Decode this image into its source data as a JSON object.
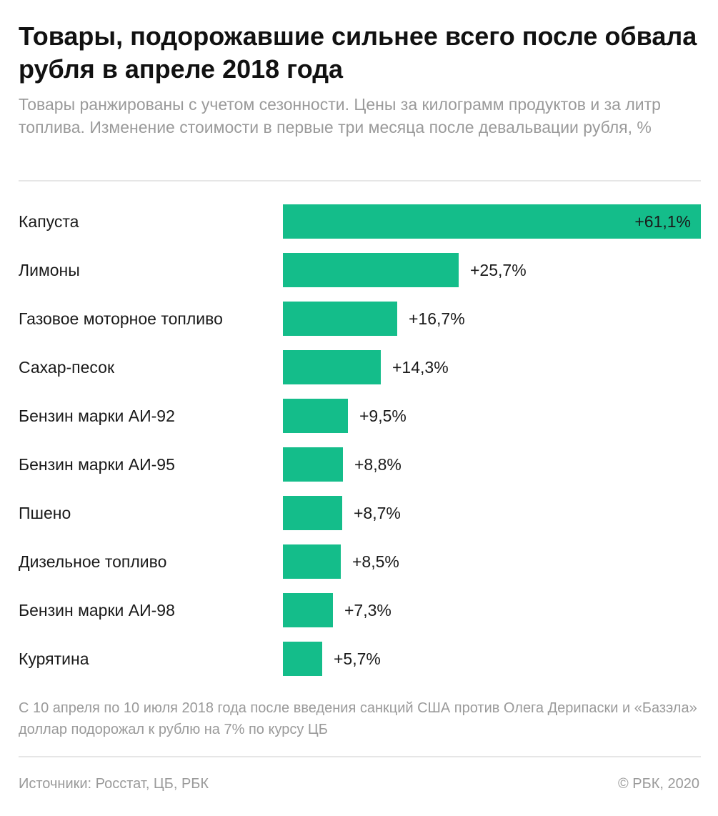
{
  "header": {
    "title": "Товары, подорожавшие сильнее всего после обвала рубля в апреле 2018 года",
    "subtitle": "Товары ранжированы с учетом сезонности. Цены за килограмм продуктов и за литр топлива. Изменение стоимости в первые три месяца после девальвации рубля, %"
  },
  "chart_data": {
    "type": "bar",
    "orientation": "horizontal",
    "title": "Товары, подорожавшие сильнее всего после обвала рубля в апреле 2018 года",
    "xlabel": "",
    "ylabel": "",
    "xlim": [
      0,
      61.1
    ],
    "categories": [
      "Капуста",
      "Лимоны",
      "Газовое моторное топливо",
      "Сахар-песок",
      "Бензин марки АИ-92",
      "Бензин марки АИ-95",
      "Пшено",
      "Дизельное топливо",
      "Бензин марки АИ-98",
      "Курятина"
    ],
    "values": [
      61.1,
      25.7,
      16.7,
      14.3,
      9.5,
      8.8,
      8.7,
      8.5,
      7.3,
      5.7
    ],
    "labels": [
      "+61,1%",
      "+25,7%",
      "+16,7%",
      "+14,3%",
      "+9,5%",
      "+8,8%",
      "+8,7%",
      "+8,5%",
      "+7,3%",
      "+5,7%"
    ],
    "bar_color": "#14bd8a",
    "label_color": "#1a1a1a"
  },
  "footer": {
    "note": "С 10 апреля по 10 июля 2018 года после введения санкций США против Олега Дерипаски и «Базэла» доллар подорожал к рублю на 7% по курсу ЦБ",
    "source": "Источники: Росстат, ЦБ, РБК",
    "copyright": "© РБК, 2020"
  }
}
